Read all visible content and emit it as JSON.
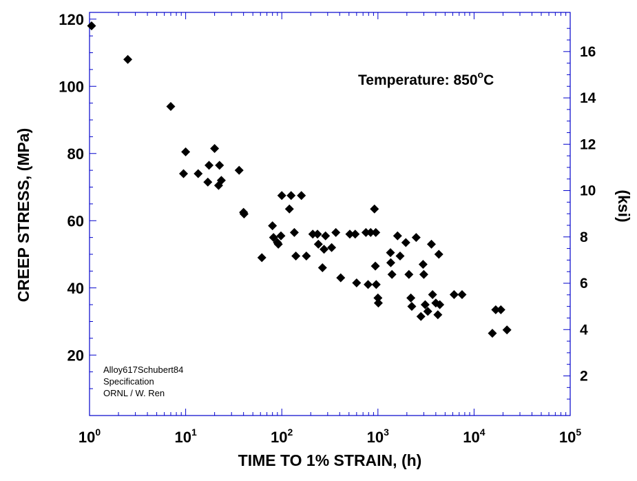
{
  "chart_data": {
    "type": "scatter",
    "xlabel": "TIME TO 1% STRAIN, (h)",
    "ylabel": "CREEP STRESS, (MPa)",
    "y2label": "(ksi)",
    "x_scale": "log",
    "xlim": [
      1,
      100000
    ],
    "ylim": [
      2,
      122
    ],
    "y2lim": [
      0.29,
      17.69
    ],
    "x_ticks": [
      {
        "base": "10",
        "exp": "0"
      },
      {
        "base": "10",
        "exp": "1"
      },
      {
        "base": "10",
        "exp": "2"
      },
      {
        "base": "10",
        "exp": "3"
      },
      {
        "base": "10",
        "exp": "4"
      },
      {
        "base": "10",
        "exp": "5"
      }
    ],
    "y_ticks": [
      "20",
      "40",
      "60",
      "80",
      "100",
      "120"
    ],
    "y2_ticks": [
      "2",
      "4",
      "6",
      "8",
      "10",
      "12",
      "14",
      "16"
    ],
    "grid": false,
    "annotation": {
      "text": "Temperature:   850",
      "sup": "o",
      "suffix": "C"
    },
    "notes": [
      "Alloy617Schubert84",
      "Specification",
      "ORNL / W. Ren"
    ],
    "marker": {
      "shape": "diamond",
      "color": "#000000"
    },
    "axis_color": "#0000cc",
    "points": [
      [
        1.05,
        118
      ],
      [
        2.5,
        108
      ],
      [
        7,
        94
      ],
      [
        9.5,
        74
      ],
      [
        10,
        80.5
      ],
      [
        13.5,
        74
      ],
      [
        17,
        71.5
      ],
      [
        17.5,
        76.5
      ],
      [
        20,
        81.5
      ],
      [
        22,
        70.5
      ],
      [
        22.5,
        76.5
      ],
      [
        23.5,
        72
      ],
      [
        36,
        75
      ],
      [
        40,
        62.5
      ],
      [
        40.5,
        62
      ],
      [
        62,
        49
      ],
      [
        80,
        58.5
      ],
      [
        82,
        55
      ],
      [
        90,
        53.5
      ],
      [
        92,
        53
      ],
      [
        98,
        55.5
      ],
      [
        100,
        67.5
      ],
      [
        120,
        63.5
      ],
      [
        125,
        67.5
      ],
      [
        135,
        56.5
      ],
      [
        140,
        49.5
      ],
      [
        160,
        67.5
      ],
      [
        180,
        49.5
      ],
      [
        210,
        56
      ],
      [
        235,
        56
      ],
      [
        240,
        53
      ],
      [
        265,
        46
      ],
      [
        275,
        51.5
      ],
      [
        285,
        55.5
      ],
      [
        330,
        52
      ],
      [
        365,
        56.5
      ],
      [
        410,
        43
      ],
      [
        510,
        56
      ],
      [
        580,
        56
      ],
      [
        600,
        41.5
      ],
      [
        750,
        56.5
      ],
      [
        790,
        41
      ],
      [
        840,
        56.5
      ],
      [
        920,
        63.5
      ],
      [
        940,
        46.5
      ],
      [
        950,
        56.5
      ],
      [
        960,
        41
      ],
      [
        1000,
        37
      ],
      [
        1010,
        35.5
      ],
      [
        1350,
        50.5
      ],
      [
        1360,
        47.5
      ],
      [
        1400,
        44
      ],
      [
        1600,
        55.5
      ],
      [
        1700,
        49.5
      ],
      [
        1950,
        53.5
      ],
      [
        2100,
        44
      ],
      [
        2200,
        37
      ],
      [
        2250,
        34.5
      ],
      [
        2500,
        55
      ],
      [
        2800,
        31.5
      ],
      [
        2950,
        47
      ],
      [
        3000,
        44
      ],
      [
        3100,
        35
      ],
      [
        3300,
        33
      ],
      [
        3600,
        53
      ],
      [
        3700,
        38
      ],
      [
        4000,
        35.5
      ],
      [
        4200,
        32
      ],
      [
        4300,
        50
      ],
      [
        4400,
        35
      ],
      [
        6200,
        38
      ],
      [
        7500,
        38
      ],
      [
        15500,
        26.5
      ],
      [
        16800,
        33.5
      ],
      [
        19000,
        33.5
      ],
      [
        22000,
        27.5
      ]
    ]
  }
}
